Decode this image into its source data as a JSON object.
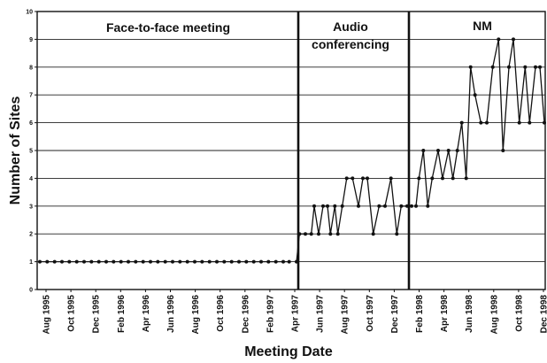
{
  "chart_data": {
    "type": "line",
    "title": "",
    "xlabel": "Meeting Date",
    "ylabel": "Number of Sites",
    "ylim": [
      0,
      10
    ],
    "y_ticks": [
      0,
      1,
      2,
      3,
      4,
      5,
      6,
      7,
      8,
      9,
      10
    ],
    "grid": "horizontal",
    "x_tick_labels": [
      "Aug 1995",
      "Oct 1995",
      "Dec 1995",
      "Feb 1996",
      "Apr 1996",
      "Jun 1996",
      "Aug 1996",
      "Oct 1996",
      "Dec 1996",
      "Feb 1997",
      "Apr 1997",
      "Jun 1997",
      "Aug 1997",
      "Oct 1997",
      "Dec 1997",
      "Feb 1998",
      "Apr 1998",
      "Jun 1998",
      "Aug 1998",
      "Oct 1998",
      "Dec 1998"
    ],
    "phases": [
      {
        "label": "Face-to-face meeting",
        "label_lines": [
          "Face-to-face meeting"
        ]
      },
      {
        "label": "Audio conferencing",
        "label_lines": [
          "Audio",
          "conferencing"
        ]
      },
      {
        "label": "NM",
        "label_lines": [
          "NM"
        ]
      }
    ],
    "series": [
      {
        "phase": 0,
        "points": [
          [
            1995.58,
            1
          ],
          [
            1995.63,
            1
          ],
          [
            1995.68,
            1
          ],
          [
            1995.73,
            1
          ],
          [
            1995.78,
            1
          ],
          [
            1995.83,
            1
          ],
          [
            1995.88,
            1
          ],
          [
            1995.93,
            1
          ],
          [
            1995.98,
            1
          ],
          [
            1996.03,
            1
          ],
          [
            1996.08,
            1
          ],
          [
            1996.13,
            1
          ],
          [
            1996.18,
            1
          ],
          [
            1996.23,
            1
          ],
          [
            1996.28,
            1
          ],
          [
            1996.33,
            1
          ],
          [
            1996.38,
            1
          ],
          [
            1996.43,
            1
          ],
          [
            1996.48,
            1
          ],
          [
            1996.53,
            1
          ],
          [
            1996.58,
            1
          ],
          [
            1996.63,
            1
          ],
          [
            1996.68,
            1
          ],
          [
            1996.73,
            1
          ],
          [
            1996.78,
            1
          ],
          [
            1996.83,
            1
          ],
          [
            1996.88,
            1
          ],
          [
            1996.93,
            1
          ],
          [
            1996.98,
            1
          ],
          [
            1997.03,
            1
          ],
          [
            1997.08,
            1
          ],
          [
            1997.13,
            1
          ],
          [
            1997.18,
            1
          ],
          [
            1997.23,
            1
          ],
          [
            1997.27,
            1
          ]
        ]
      },
      {
        "phase": 1,
        "points": [
          [
            1997.32,
            1
          ],
          [
            1997.34,
            2
          ],
          [
            1997.38,
            2
          ],
          [
            1997.42,
            2
          ],
          [
            1997.44,
            3
          ],
          [
            1997.47,
            2
          ],
          [
            1997.5,
            3
          ],
          [
            1997.53,
            3
          ],
          [
            1997.55,
            2
          ],
          [
            1997.58,
            3
          ],
          [
            1997.6,
            2
          ],
          [
            1997.63,
            3
          ],
          [
            1997.66,
            4
          ],
          [
            1997.7,
            4
          ],
          [
            1997.74,
            3
          ],
          [
            1997.77,
            4
          ],
          [
            1997.8,
            4
          ],
          [
            1997.84,
            2
          ],
          [
            1997.88,
            3
          ],
          [
            1997.92,
            3
          ],
          [
            1997.96,
            4
          ],
          [
            1998.0,
            2
          ],
          [
            1998.03,
            3
          ],
          [
            1998.07,
            3
          ],
          [
            1998.1,
            3
          ]
        ]
      },
      {
        "phase": 2,
        "points": [
          [
            1998.13,
            3
          ],
          [
            1998.15,
            4
          ],
          [
            1998.18,
            5
          ],
          [
            1998.21,
            3
          ],
          [
            1998.24,
            4
          ],
          [
            1998.28,
            5
          ],
          [
            1998.31,
            4
          ],
          [
            1998.35,
            5
          ],
          [
            1998.38,
            4
          ],
          [
            1998.41,
            5
          ],
          [
            1998.44,
            6
          ],
          [
            1998.47,
            4
          ],
          [
            1998.5,
            8
          ],
          [
            1998.53,
            7
          ],
          [
            1998.57,
            6
          ],
          [
            1998.61,
            6
          ],
          [
            1998.65,
            8
          ],
          [
            1998.69,
            9
          ],
          [
            1998.72,
            5
          ],
          [
            1998.76,
            8
          ],
          [
            1998.79,
            9
          ],
          [
            1998.83,
            6
          ],
          [
            1998.87,
            8
          ],
          [
            1998.9,
            6
          ],
          [
            1998.94,
            8
          ],
          [
            1998.97,
            8
          ],
          [
            1999.0,
            6
          ]
        ]
      }
    ]
  }
}
